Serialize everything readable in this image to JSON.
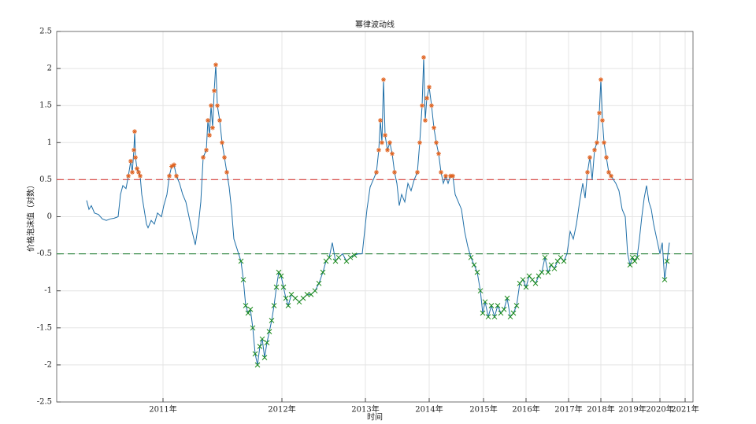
{
  "chart_data": {
    "type": "line",
    "title": "幂律波动线",
    "xlabel": "时间",
    "ylabel": "价格泡沫值（对数）",
    "xlim": [
      72,
      880
    ],
    "ylim": [
      -2.5,
      2.5
    ],
    "xticks": [
      {
        "value": 207,
        "label": "2011年"
      },
      {
        "value": 358,
        "label": "2012年"
      },
      {
        "value": 464,
        "label": "2013年"
      },
      {
        "value": 545,
        "label": "2014年"
      },
      {
        "value": 614,
        "label": "2015年"
      },
      {
        "value": 668,
        "label": "2016年"
      },
      {
        "value": 722,
        "label": "2017年"
      },
      {
        "value": 763,
        "label": "2018年"
      },
      {
        "value": 803,
        "label": "2019年"
      },
      {
        "value": 838,
        "label": "2020年"
      },
      {
        "value": 870,
        "label": "2021年"
      }
    ],
    "yticks": [
      -2.5,
      -2,
      -1.5,
      -1,
      -0.5,
      0,
      0.5,
      1,
      1.5,
      2,
      2.5
    ],
    "grid": true,
    "color": "#1f6fa8",
    "hlines": [
      {
        "value": 0.5,
        "color": "#d9534f"
      },
      {
        "value": -0.5,
        "color": "#3f8f4f"
      }
    ],
    "above_color": "#e0621f",
    "below_color": "#1a8a1a",
    "x": [
      110,
      113,
      116,
      120,
      125,
      130,
      135,
      140,
      145,
      150,
      153,
      156,
      160,
      163,
      166,
      168,
      170,
      171,
      172,
      174,
      176,
      178,
      180,
      183,
      186,
      188,
      192,
      196,
      200,
      205,
      208,
      212,
      215,
      218,
      221,
      224,
      228,
      232,
      236,
      240,
      244,
      248,
      252,
      255,
      258,
      262,
      264,
      266,
      268,
      270,
      272,
      274,
      276,
      279,
      282,
      285,
      288,
      291,
      294,
      297,
      300,
      303,
      306,
      309,
      312,
      315,
      318,
      321,
      324,
      327,
      330,
      333,
      336,
      339,
      342,
      345,
      348,
      351,
      354,
      357,
      360,
      363,
      366,
      370,
      375,
      380,
      385,
      390,
      395,
      400,
      405,
      410,
      414,
      418,
      422,
      426,
      430,
      435,
      440,
      445,
      450,
      455,
      460,
      463,
      466,
      470,
      474,
      478,
      481,
      483,
      485,
      487,
      489,
      492,
      495,
      498,
      501,
      504,
      507,
      510,
      514,
      518,
      522,
      526,
      530,
      533,
      536,
      538,
      540,
      542,
      545,
      548,
      551,
      554,
      557,
      560,
      563,
      566,
      569,
      572,
      575,
      578,
      582,
      586,
      590,
      594,
      598,
      602,
      606,
      610,
      613,
      616,
      620,
      624,
      628,
      632,
      636,
      640,
      644,
      648,
      652,
      656,
      660,
      664,
      668,
      672,
      676,
      680,
      684,
      688,
      692,
      696,
      700,
      704,
      708,
      712,
      716,
      720,
      724,
      728,
      732,
      736,
      740,
      743,
      746,
      749,
      752,
      755,
      758,
      761,
      763,
      765,
      767,
      770,
      773,
      776,
      779,
      782,
      786,
      790,
      794,
      797,
      800,
      803,
      806,
      809,
      812,
      815,
      818,
      821,
      824,
      827,
      830,
      834,
      838,
      841,
      844,
      847,
      850
    ],
    "values": [
      0.22,
      0.1,
      0.15,
      0.05,
      0.03,
      -0.03,
      -0.05,
      -0.03,
      -0.02,
      0.0,
      0.3,
      0.42,
      0.38,
      0.55,
      0.75,
      0.6,
      0.9,
      1.15,
      0.8,
      0.65,
      0.6,
      0.55,
      0.3,
      0.1,
      -0.1,
      -0.15,
      -0.05,
      -0.1,
      0.05,
      0.0,
      0.15,
      0.3,
      0.55,
      0.68,
      0.7,
      0.55,
      0.45,
      0.3,
      0.2,
      0.0,
      -0.2,
      -0.38,
      -0.1,
      0.2,
      0.8,
      0.9,
      1.3,
      1.1,
      1.5,
      1.2,
      1.7,
      2.05,
      1.5,
      1.3,
      1.0,
      0.8,
      0.6,
      0.4,
      0.1,
      -0.3,
      -0.4,
      -0.5,
      -0.6,
      -0.85,
      -1.2,
      -1.3,
      -1.25,
      -1.5,
      -1.85,
      -2.0,
      -1.75,
      -1.65,
      -1.9,
      -1.7,
      -1.55,
      -1.4,
      -1.2,
      -0.95,
      -0.75,
      -0.8,
      -0.95,
      -1.1,
      -1.2,
      -1.05,
      -1.1,
      -1.15,
      -1.1,
      -1.05,
      -1.05,
      -1.0,
      -0.9,
      -0.75,
      -0.6,
      -0.55,
      -0.35,
      -0.6,
      -0.55,
      -0.5,
      -0.6,
      -0.55,
      -0.52,
      -0.5,
      -0.5,
      -0.2,
      0.1,
      0.4,
      0.5,
      0.6,
      0.9,
      1.3,
      1.0,
      1.85,
      1.1,
      0.9,
      1.0,
      0.85,
      0.6,
      0.45,
      0.15,
      0.3,
      0.2,
      0.45,
      0.35,
      0.5,
      0.6,
      1.0,
      1.5,
      2.15,
      1.3,
      1.6,
      1.75,
      1.5,
      1.2,
      1.0,
      0.85,
      0.6,
      0.45,
      0.55,
      0.45,
      0.55,
      0.55,
      0.3,
      0.2,
      0.1,
      -0.2,
      -0.4,
      -0.55,
      -0.65,
      -0.75,
      -1.0,
      -1.3,
      -1.15,
      -1.35,
      -1.2,
      -1.35,
      -1.2,
      -1.3,
      -1.25,
      -1.1,
      -1.35,
      -1.3,
      -1.2,
      -0.9,
      -0.85,
      -0.95,
      -0.8,
      -0.85,
      -0.9,
      -0.8,
      -0.75,
      -0.55,
      -0.75,
      -0.65,
      -0.7,
      -0.6,
      -0.55,
      -0.6,
      -0.5,
      -0.2,
      -0.3,
      -0.1,
      0.2,
      0.45,
      0.25,
      0.6,
      0.8,
      0.5,
      0.9,
      1.0,
      1.4,
      1.85,
      1.3,
      1.0,
      0.8,
      0.6,
      0.55,
      0.5,
      0.45,
      0.35,
      0.1,
      0.0,
      -0.5,
      -0.65,
      -0.55,
      -0.6,
      -0.55,
      -0.3,
      0.0,
      0.25,
      0.42,
      0.2,
      0.1,
      -0.1,
      -0.3,
      -0.5,
      -0.35,
      -0.85,
      -0.6,
      -0.35
    ]
  }
}
